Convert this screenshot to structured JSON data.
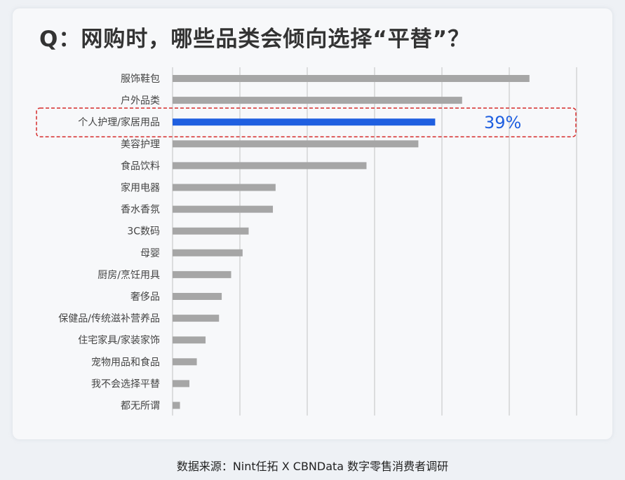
{
  "title": "Q：网购时，哪些品类会倾向选择“平替”？",
  "footer": "数据来源：Nint任拓 X CBNData 数字零售消费者调研",
  "colors": {
    "bar": "#a6a6a6",
    "highlight_bar": "#1f5fe0",
    "highlight_box": "#d62b2b",
    "grid": "#d4d4d4"
  },
  "chart_data": {
    "type": "bar",
    "orientation": "horizontal",
    "unit": "%",
    "categories": [
      "服饰鞋包",
      "户外品类",
      "个人护理/家居用品",
      "美容护理",
      "食品饮料",
      "家用电器",
      "香水香氛",
      "3C数码",
      "母婴",
      "厨房/烹饪用具",
      "奢侈品",
      "保健品/传统滋补营养品",
      "住宅家具/家装家饰",
      "宠物用品和食品",
      "我不会选择平替",
      "都无所谓"
    ],
    "values": [
      53,
      43,
      39,
      36.5,
      28.8,
      15.3,
      14.9,
      11.3,
      10.4,
      8.7,
      7.3,
      6.9,
      4.9,
      3.6,
      2.5,
      1.1
    ],
    "highlight_index": 2,
    "highlight_label": "39%",
    "xlim": [
      0,
      60
    ],
    "grid": true,
    "gridlines": [
      0,
      10,
      20,
      30,
      40,
      50,
      60
    ]
  }
}
